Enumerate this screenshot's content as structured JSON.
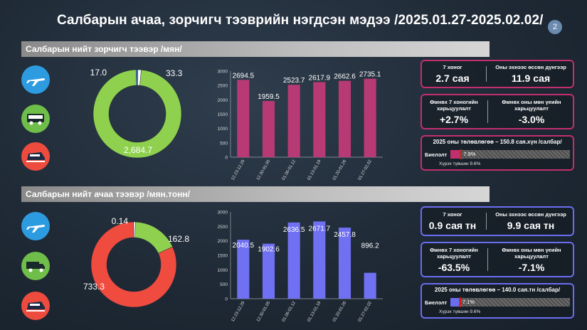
{
  "title": "Салбарын ачаа, зорчигч тээврийн нэгдсэн мэдээ /2025.01.27-2025.02.02/",
  "page_number": "2",
  "colors": {
    "passenger_accent": "#c22f6e",
    "passenger_bar": "#b83a74",
    "cargo_accent": "#6b6df0",
    "cargo_bar": "#7070f2",
    "air": "#2d9be0",
    "road": "#6fbe4a",
    "rail": "#ee4b3f",
    "plan_target": "#e01818"
  },
  "icons": [
    "airplane-icon",
    "bus-icon",
    "truck-icon",
    "train-icon"
  ],
  "passenger": {
    "section_title": "Салбарын нийт зорчигч тээвэр /мян/",
    "stats": {
      "week_label": "7 хоног",
      "week_value": "2.7 сая",
      "ytd_label": "Оны эхнээс өссөн дүнгээр",
      "ytd_value": "11.9 сая",
      "prev_week_label": "Өмнөх 7 хоногийн харьцуулалт",
      "prev_week_value": "+2.7%",
      "prev_year_label": "Өмнөх оны мөн үеийн харьцуулалт",
      "prev_year_value": "-3.0%"
    },
    "plan": {
      "title": "2025 оны төлөвлөгөө – 150.8 сая.хүн /салбар/",
      "label": "Биелэлт",
      "percent_text": "7.9%",
      "percent": 7.9,
      "target_percent": 9.6,
      "note": "Хүрэх түвшин 9.6%"
    }
  },
  "cargo": {
    "section_title": "Салбарын нийт ачаа тээвэр /мян.тонн/",
    "stats": {
      "week_label": "7 хоног",
      "week_value": "0.9 сая тн",
      "ytd_label": "Оны эхнээс өссөн дүнгээр",
      "ytd_value": "9.9 сая тн",
      "prev_week_label": "Өмнөх 7 хоногийн харьцуулалт",
      "prev_week_value": "-63.5%",
      "prev_year_label": "Өмнөх оны мөн үеийн харьцуулалт",
      "prev_year_value": "-7.1%"
    },
    "plan": {
      "title": "2025 оны төлөвлөгөө – 140.0 сая.тн /салбар/",
      "label": "Биелэлт",
      "percent_text": "7.1%",
      "percent": 7.1,
      "target_percent": 9.6,
      "note": "Хүрэх түвшин 9.6%"
    }
  },
  "chart_data": [
    {
      "id": "passenger-donut",
      "type": "pie",
      "values": [
        2684.7,
        17.0,
        33.3
      ],
      "labels": [
        "2,684.7",
        "17.0",
        "33.3"
      ],
      "colors": [
        "#8fd14f",
        "#3d7fd6",
        "#ffffff"
      ]
    },
    {
      "id": "passenger-bars",
      "type": "bar",
      "categories": [
        "12.23-12.29",
        "12.30-01.05",
        "01.06-01.12",
        "01.13-01.19",
        "01.20-01.26",
        "01.27-02.02"
      ],
      "values": [
        2694.5,
        1959.5,
        2523.7,
        2617.9,
        2662.6,
        2735.1
      ],
      "labels": [
        "2694.5",
        "1959.5",
        "2523.7",
        "2617.9",
        "2662.6",
        "2735.1"
      ],
      "ylim": [
        0,
        3000
      ],
      "yticks": [
        0,
        500,
        1000,
        1500,
        2000,
        2500,
        3000
      ],
      "color": "#b83a74"
    },
    {
      "id": "cargo-donut",
      "type": "pie",
      "values": [
        733.3,
        0.14,
        162.8
      ],
      "labels": [
        "733.3",
        "0.14",
        "162.8"
      ],
      "colors": [
        "#ef4b3f",
        "#ffffff",
        "#8fd14f"
      ]
    },
    {
      "id": "cargo-bars",
      "type": "bar",
      "categories": [
        "12.23-12.29",
        "12.30-01.05",
        "01.06-01.12",
        "01.13-01.19",
        "01.20-01.26",
        "01.27-02.02"
      ],
      "values": [
        2040.5,
        1902.6,
        2636.5,
        2671.7,
        2457.8,
        896.2
      ],
      "labels": [
        "2040.5",
        "1902.6",
        "2636.5",
        "2671.7",
        "2457.8",
        "896.2"
      ],
      "ylim": [
        0,
        3000
      ],
      "yticks": [
        0,
        500,
        1000,
        1500,
        2000,
        2500,
        3000
      ],
      "color": "#7070f2"
    }
  ]
}
